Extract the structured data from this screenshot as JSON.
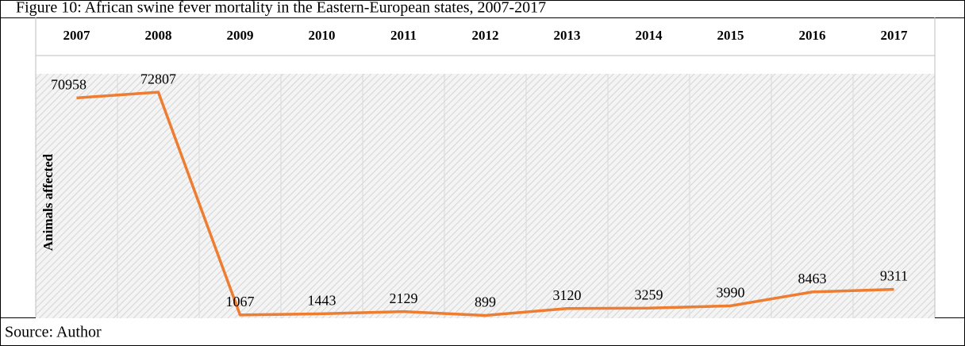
{
  "chart_data": {
    "type": "line",
    "title": "Figure 10: African swine fever mortality in the Eastern-European states, 2007-2017",
    "ylabel": "Animals affected",
    "source": "Source: Author",
    "categories": [
      "2007",
      "2008",
      "2009",
      "2010",
      "2011",
      "2012",
      "2013",
      "2014",
      "2015",
      "2016",
      "2017"
    ],
    "values": [
      70958,
      72807,
      1067,
      1443,
      2129,
      899,
      3120,
      3259,
      3990,
      8463,
      9311
    ],
    "color": "#ed7d31",
    "ylim": [
      0,
      80000
    ]
  }
}
